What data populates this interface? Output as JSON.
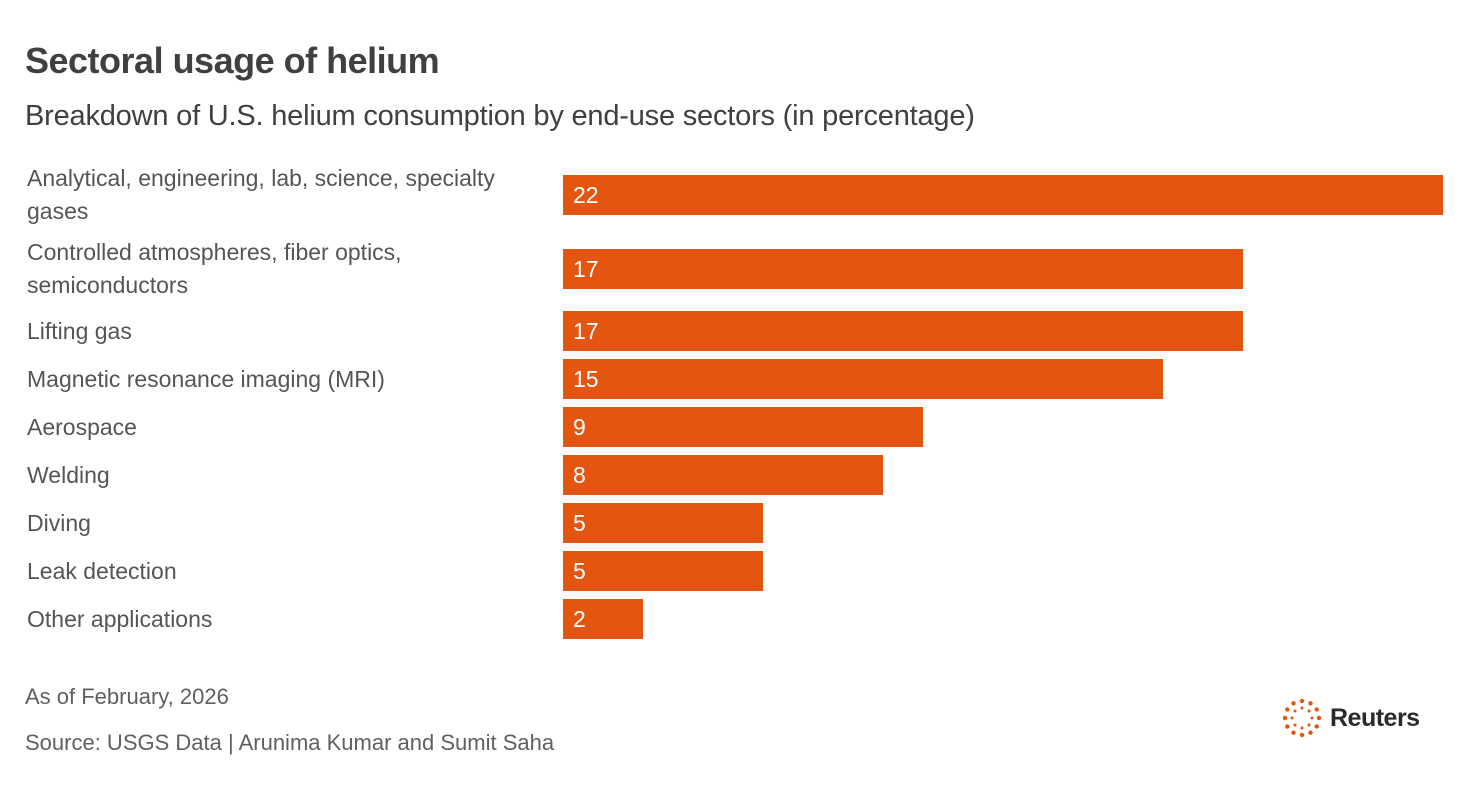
{
  "header": {
    "title": "Sectoral usage of helium",
    "subtitle": "Breakdown of U.S. helium consumption by end-use sectors (in percentage)"
  },
  "footer": {
    "note": "As of February, 2026",
    "source": "Source: USGS Data | Arunima Kumar and Sumit Saha",
    "logo_text": "Reuters"
  },
  "colors": {
    "bar": "#e4560f",
    "text": "#404040",
    "logo_dots": "#e4560f"
  },
  "chart_data": {
    "type": "bar",
    "orientation": "horizontal",
    "title": "Sectoral usage of helium",
    "subtitle": "Breakdown of U.S. helium consumption by end-use sectors (in percentage)",
    "xlabel": "",
    "ylabel": "",
    "categories": [
      "Analytical, engineering, lab, science, specialty gases",
      "Controlled atmospheres, fiber optics, semiconductors",
      "Lifting gas",
      "Magnetic resonance imaging (MRI)",
      "Aerospace",
      "Welding",
      "Diving",
      "Leak detection",
      "Other applications"
    ],
    "values": [
      22,
      17,
      17,
      15,
      9,
      8,
      5,
      5,
      2
    ],
    "data_labels": [
      "22",
      "17",
      "17",
      "15",
      "9",
      "8",
      "5",
      "5",
      "2"
    ],
    "grid": false,
    "legend": null,
    "xlim": [
      0,
      22
    ]
  }
}
